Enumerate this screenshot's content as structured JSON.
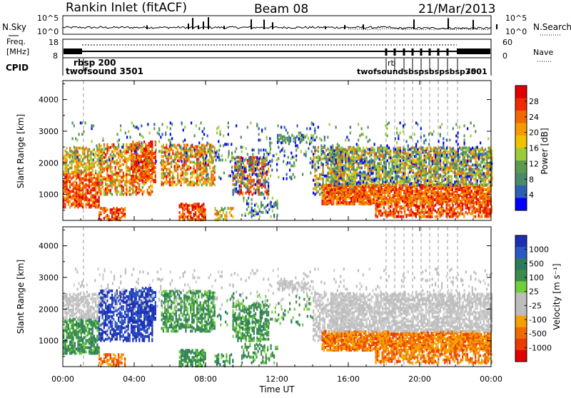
{
  "header": {
    "station": "Rankin Inlet (fitACF)",
    "beam": "Beam 08",
    "date": "21/Mar/2013"
  },
  "top_panels": {
    "nsky_label": "N.Sky",
    "nsearch_label": "N.Search",
    "freq_label_1": "Freq.",
    "freq_label_2": "[MHz]",
    "nave_label": "Nave",
    "cpid_label": "CPID",
    "noise_ticks_left": [
      "10^5",
      "10^0"
    ],
    "noise_ticks_right": [
      "10^5",
      "10^0"
    ],
    "freq_ticks": [
      "18",
      "8"
    ],
    "nave_ticks": [
      "60",
      "0"
    ],
    "cpid_texts": {
      "twofsound": "twofsound 3501",
      "rbsp": "rbsp 200",
      "right_cluster": "twofsoundsbspsbspsbsp700",
      "right_num": "3501",
      "rb": "rb"
    }
  },
  "chart_data": [
    {
      "type": "heatmap",
      "name": "power",
      "ylabel": "Slant Range [km]",
      "yticks": [
        1000,
        2000,
        3000,
        4000
      ],
      "colorbar_label": "Power [dB]",
      "colorbar_ticks": [
        "4",
        "8",
        "12",
        "16",
        "20",
        "24",
        "28"
      ],
      "colorbar_colors": [
        "#0000ff",
        "#2f5fb5",
        "#4a8a6a",
        "#5e9a4e",
        "#9ccc3c",
        "#f2c200",
        "#f79a00",
        "#f26800",
        "#ee2c00",
        "#e00000"
      ]
    },
    {
      "type": "heatmap",
      "name": "velocity",
      "ylabel": "Slant Range [km]",
      "yticks": [
        1000,
        2000,
        3000,
        4000
      ],
      "colorbar_label": "Velocity  [m s⁻¹]",
      "colorbar_ticks": [
        "1000",
        "500",
        "100",
        "25",
        "-25",
        "-100",
        "-500",
        "-1000"
      ],
      "colorbar_colors": [
        "#1b2fb3",
        "#2a57c7",
        "#2a7a5f",
        "#3a8c4b",
        "#6fcf3a",
        "#bdbdbd",
        "#bdbdbd",
        "#f6a000",
        "#f06a00",
        "#ea3c00",
        "#e00000"
      ]
    }
  ],
  "xaxis": {
    "ticks": [
      "00:00",
      "04:00",
      "08:00",
      "12:00",
      "16:00",
      "20:00",
      "00:00"
    ],
    "label": "Time UT"
  }
}
